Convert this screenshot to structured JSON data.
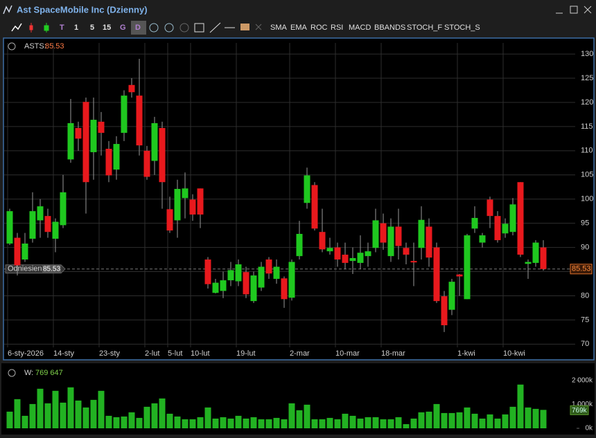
{
  "window": {
    "title": "Ast SpaceMobile Inc (Dzienny)"
  },
  "toolbar": {
    "intervals": [
      "1",
      "5",
      "15",
      "G",
      "D"
    ],
    "indicators": [
      "SMA",
      "EMA",
      "ROC",
      "RSI",
      "MACD",
      "BBANDS",
      "STOCH_F",
      "STOCH_S"
    ]
  },
  "chart_data": [
    {
      "type": "candlestick",
      "legend_symbol": "ASTS:",
      "reference_label": "Odniesienie",
      "up_color": "#1fc81f",
      "down_color": "#e8191d",
      "wick_color": "#9a9a9a",
      "grid": true,
      "ylim": [
        68.9,
        132.3
      ],
      "yticks": [
        70,
        75,
        80,
        85,
        90,
        95,
        100,
        105,
        110,
        115,
        120,
        125,
        130
      ],
      "categories": [
        "6-sty-2026",
        null,
        null,
        null,
        null,
        null,
        "14-sty",
        null,
        null,
        null,
        null,
        null,
        "23-sty",
        null,
        null,
        null,
        null,
        null,
        "2-lut",
        null,
        null,
        "5-lut",
        null,
        null,
        "10-lut",
        null,
        null,
        null,
        null,
        null,
        "19-lut",
        null,
        null,
        null,
        null,
        null,
        null,
        "2-mar",
        null,
        null,
        null,
        null,
        null,
        "10-mar",
        null,
        null,
        null,
        null,
        null,
        "18-mar",
        null,
        null,
        null,
        null,
        null,
        null,
        null,
        null,
        null,
        "1-kwi",
        null,
        null,
        null,
        null,
        null,
        "10-kwi",
        null,
        null,
        null,
        null,
        null
      ],
      "open": [
        90.8,
        92,
        87.5,
        91.8,
        95.6,
        96.5,
        91.8,
        94.6,
        108.2,
        114.7,
        120.1,
        109.7,
        116,
        110.4,
        106.1,
        113.7,
        123.6,
        121.4,
        110,
        107.9,
        114.7,
        97.9,
        95.6,
        100.2,
        99.9,
        102.2,
        87.5,
        80.6,
        81,
        83.2,
        83,
        84.9,
        78.9,
        81.7,
        87.5,
        83.5,
        83.6,
        79.6,
        88.2,
        99.2,
        102.9,
        93.2,
        89.2,
        90,
        88.5,
        87.2,
        86.8,
        88.2,
        89.9,
        95,
        88.2,
        94.3,
        89.9,
        87.2,
        89.9,
        94.3,
        90,
        79.9,
        77.1,
        84.4,
        79.3,
        93.9,
        91,
        99.9,
        96.5,
        92.9,
        93.2,
        103.5,
        86.6,
        86.8,
        90
      ],
      "high": [
        98,
        93,
        93,
        101.4,
        100,
        98,
        96,
        105,
        120.7,
        116,
        121,
        121,
        118,
        112,
        113,
        122.5,
        125,
        129,
        111,
        117,
        116,
        100.5,
        104,
        105.5,
        101,
        102.2,
        88,
        83.5,
        85,
        87,
        87.5,
        86,
        85,
        87,
        88,
        87.5,
        84,
        87.5,
        95.5,
        106.5,
        103.5,
        98,
        92,
        91,
        91,
        90,
        92.5,
        91,
        98,
        97,
        96,
        98,
        91,
        91,
        98.5,
        96,
        91,
        81,
        83.5,
        84.5,
        92.8,
        98.5,
        93,
        100.5,
        97.5,
        96,
        100.2,
        103.5,
        87.5,
        91.5,
        91.5
      ],
      "low": [
        90.5,
        84.2,
        87,
        91,
        92,
        92,
        89,
        94,
        107.5,
        110,
        97,
        104,
        109,
        103.5,
        104,
        112,
        121,
        109,
        104,
        105,
        98,
        93,
        92,
        96,
        95.5,
        94,
        81.5,
        80.5,
        79.5,
        82,
        82,
        79.5,
        78.5,
        81,
        83.5,
        82.5,
        77.5,
        79,
        87.5,
        98,
        93.5,
        89,
        88.5,
        86,
        85.5,
        84.5,
        85.5,
        86,
        89,
        89.5,
        87,
        87.5,
        86.5,
        82,
        87.5,
        86,
        78.5,
        72.5,
        76,
        80,
        79.3,
        93,
        90,
        94,
        91,
        92,
        92.5,
        88,
        83.5,
        86,
        85.2
      ],
      "close": [
        97.5,
        86.3,
        90.8,
        97.5,
        98.5,
        93.2,
        95.3,
        101.4,
        115.7,
        112.5,
        103.5,
        116.4,
        113.7,
        104.9,
        111.4,
        121.4,
        122.1,
        111.1,
        104.6,
        115.7,
        103.5,
        93.5,
        102.1,
        102.2,
        96.8,
        96.8,
        82.4,
        82.7,
        83.2,
        85.3,
        86.5,
        80.3,
        84.2,
        86,
        84.6,
        86,
        79.3,
        87,
        92.8,
        104.9,
        93.9,
        89.6,
        89.9,
        87.5,
        86.8,
        87.8,
        88.9,
        89.2,
        95.6,
        91,
        94.3,
        90.3,
        88.5,
        86.9,
        95.7,
        87.9,
        78.9,
        73.9,
        82.9,
        84,
        92.5,
        96.1,
        92.5,
        96.5,
        91.5,
        94.9,
        98.9,
        88.5,
        87,
        91,
        85.53
      ]
    },
    {
      "type": "bar",
      "legend_symbol": "W:",
      "legend_value": "769 647",
      "last_label": "769k",
      "color": "#22b222",
      "ylim": [
        0,
        2600000
      ],
      "yticks": [
        {
          "value": 0,
          "label": "0k"
        },
        {
          "value": 1000000,
          "label": "1 000k"
        },
        {
          "value": 2000000,
          "label": "2 000k"
        }
      ],
      "values": [
        696000,
        1217000,
        522000,
        1014000,
        1652000,
        1043000,
        1565000,
        1072000,
        1710000,
        1159000,
        870000,
        1188000,
        1565000,
        522000,
        464000,
        493000,
        667000,
        435000,
        899000,
        1043000,
        1246000,
        609000,
        493000,
        377000,
        377000,
        464000,
        870000,
        406000,
        464000,
        406000,
        522000,
        406000,
        464000,
        377000,
        377000,
        435000,
        377000,
        1043000,
        754000,
        986000,
        377000,
        377000,
        435000,
        377000,
        609000,
        522000,
        406000,
        464000,
        464000,
        377000,
        377000,
        464000,
        174000,
        406000,
        667000,
        696000,
        1014000,
        638000,
        638000,
        667000,
        870000,
        609000,
        406000,
        580000,
        406000,
        580000,
        899000,
        1826000,
        870000,
        812000,
        769647
      ]
    }
  ]
}
